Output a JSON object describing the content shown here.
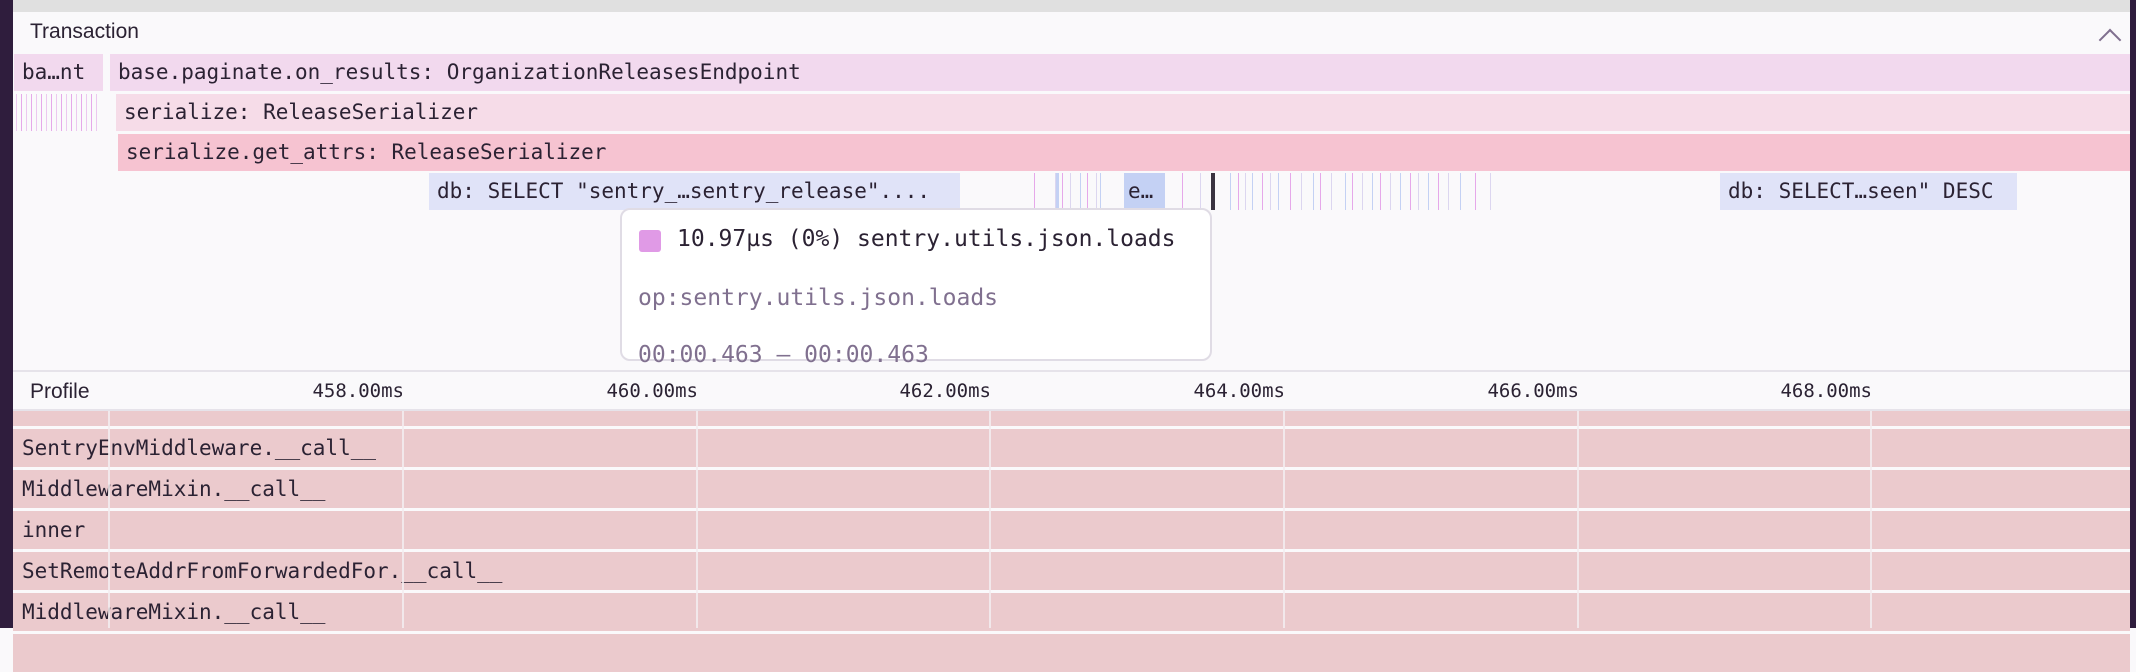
{
  "transaction": {
    "title": "Transaction",
    "collapse_icon": "chevron-up-icon",
    "spans": [
      {
        "label": "ba…nt"
      },
      {
        "label": "base.paginate.on_results: OrganizationReleasesEndpoint"
      },
      {
        "label": "serialize: ReleaseSerializer"
      },
      {
        "label": "serialize.get_attrs: ReleaseSerializer"
      },
      {
        "label": "db: SELECT \"sentry_…sentry_release\"...."
      },
      {
        "label": "e…"
      },
      {
        "label": "db: SELECT…seen\" DESC"
      }
    ],
    "colors": {
      "root": "#f2d9ee",
      "serialize": "#f6dce8",
      "get_attrs": "#f6c3d1",
      "db": "#e0e3f8",
      "db_dark": "#c4d1f4",
      "json_loads": "#e09ae6"
    }
  },
  "tooltip": {
    "duration": "10.97µs (0%) sentry.utils.json.loads",
    "op": "op:sentry.utils.json.loads",
    "range": "00:00.463 — 00:00.463"
  },
  "profile": {
    "title": "Profile",
    "ticks": [
      "458.00ms",
      "460.00ms",
      "462.00ms",
      "464.00ms",
      "466.00ms",
      "468.00ms"
    ],
    "frames": [
      "SentryEnvMiddleware.__call__",
      "MiddlewareMixin.__call__",
      "inner",
      "SetRemoteAddrFromForwardedFor.__call__",
      "MiddlewareMixin.__call__"
    ],
    "frame_color": "#ebcacd"
  }
}
